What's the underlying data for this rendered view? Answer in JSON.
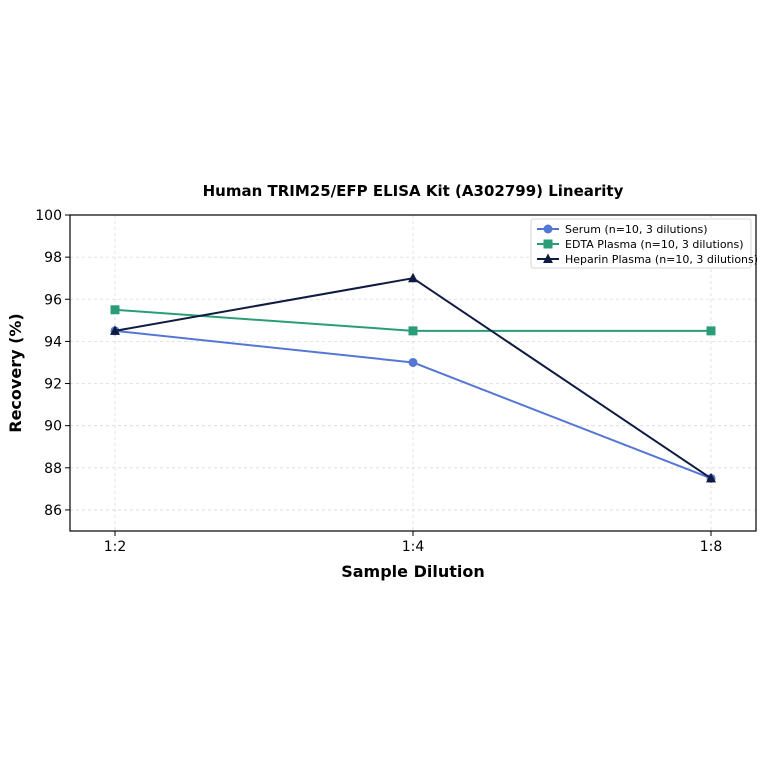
{
  "chart_data": {
    "type": "line",
    "title": "Human TRIM25/EFP ELISA Kit (A302799) Linearity",
    "xlabel": "Sample Dilution",
    "ylabel": "Recovery (%)",
    "categories": [
      "1:2",
      "1:4",
      "1:8"
    ],
    "ylim": [
      85,
      100
    ],
    "yticks": [
      "86",
      "88",
      "90",
      "92",
      "94",
      "96",
      "98",
      "100"
    ],
    "grid": true,
    "legend_position": "top-right",
    "series": [
      {
        "name": "Serum (n=10, 3 dilutions)",
        "values": [
          94.5,
          93.0,
          87.5
        ],
        "color": "#5577d4",
        "marker": "circle"
      },
      {
        "name": "EDTA Plasma (n=10, 3 dilutions)",
        "values": [
          95.5,
          94.5,
          94.5
        ],
        "color": "#2a9d78",
        "marker": "square"
      },
      {
        "name": "Heparin Plasma (n=10, 3 dilutions)",
        "values": [
          94.5,
          97.0,
          87.5
        ],
        "color": "#0f1b40",
        "marker": "triangle"
      }
    ]
  }
}
